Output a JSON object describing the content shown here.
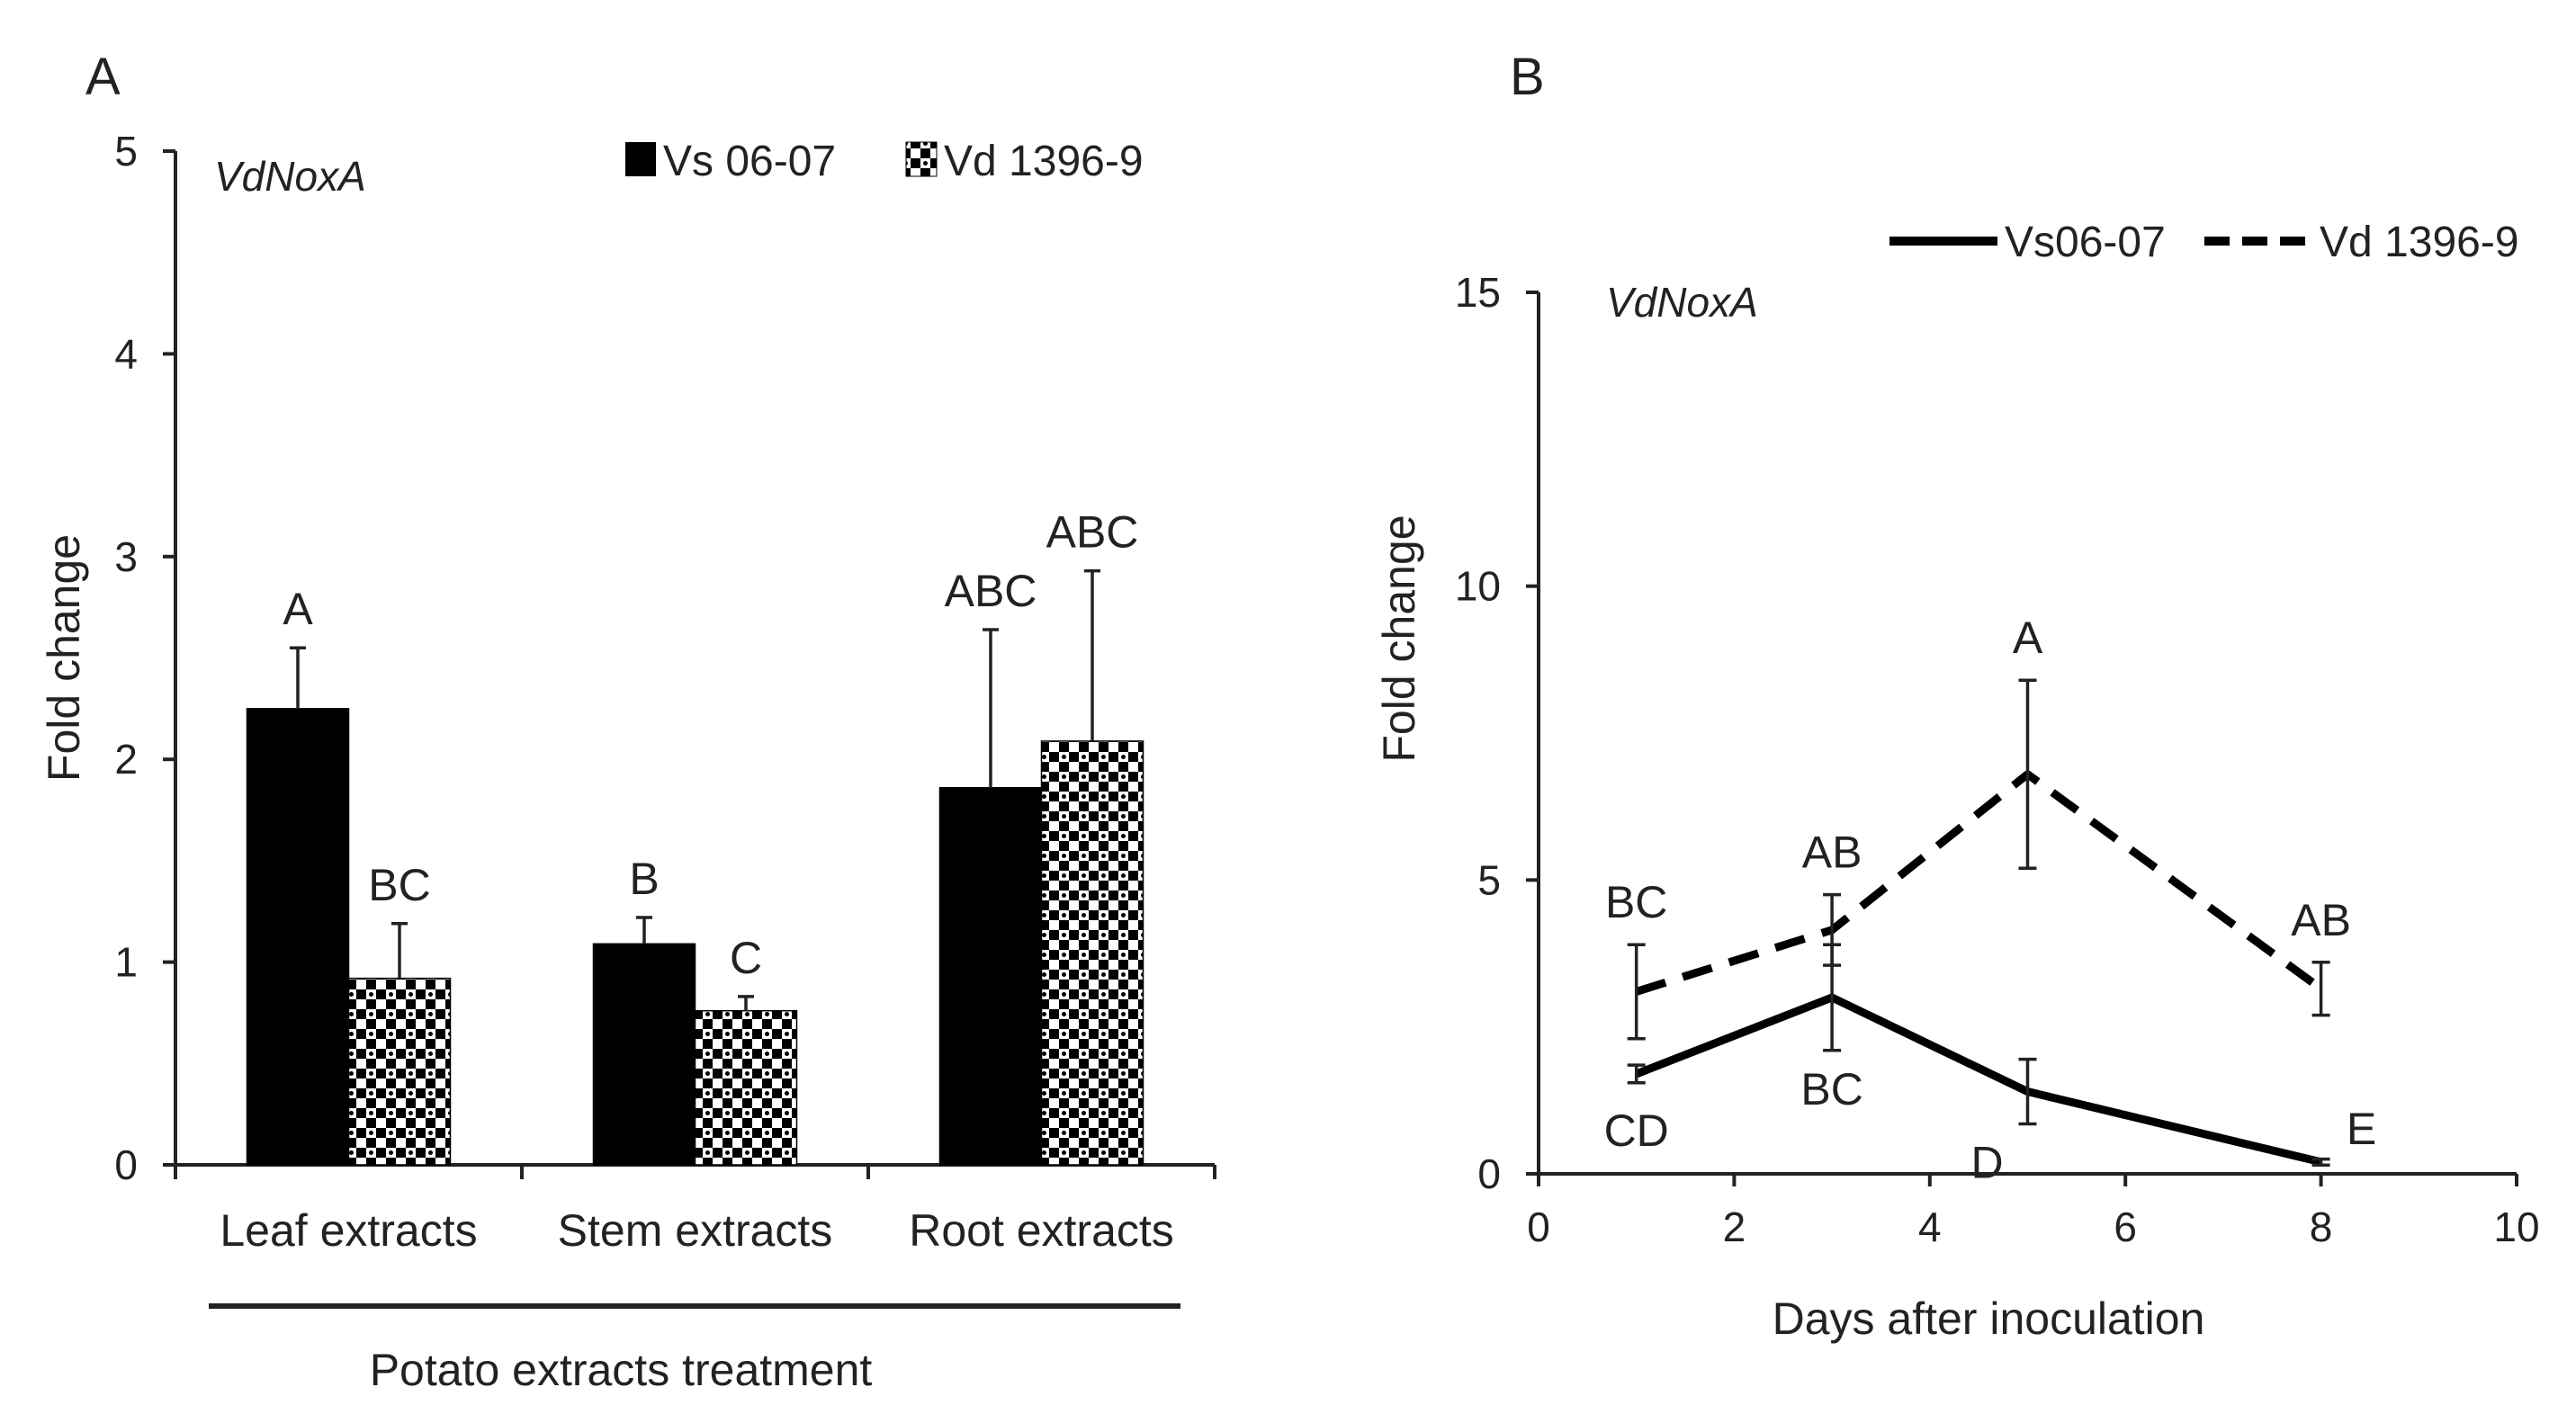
{
  "chart_data": [
    {
      "type": "bar",
      "panel": "A",
      "gene": "VdNoxA",
      "ylabel": "Fold change",
      "group_label": "Potato extracts treatment",
      "xlabel": "",
      "ylim": [
        0,
        5
      ],
      "yticks": [
        "0",
        "1",
        "2",
        "3",
        "4",
        "5"
      ],
      "categories": [
        "Leaf extracts",
        "Stem extracts",
        "Root extracts"
      ],
      "series": [
        {
          "name": "Vs 06-07",
          "color": "#000000",
          "pattern": "solid",
          "values": [
            2.25,
            1.09,
            1.86
          ],
          "errors": [
            0.3,
            0.13,
            0.78
          ],
          "labels": [
            "A",
            "B",
            "ABC"
          ]
        },
        {
          "name": "Vd 1396-9",
          "color": "#000000",
          "pattern": "checkered",
          "values": [
            0.92,
            0.76,
            2.09
          ],
          "errors": [
            0.27,
            0.07,
            0.84
          ],
          "labels": [
            "BC",
            "C",
            "ABC"
          ]
        }
      ]
    },
    {
      "type": "line",
      "panel": "B",
      "gene": "VdNoxA",
      "ylabel": "Fold change",
      "xlabel": "Days after inoculation",
      "xlim": [
        0,
        10
      ],
      "ylim": [
        0,
        15
      ],
      "xticks": [
        "0",
        "2",
        "4",
        "6",
        "8",
        "10"
      ],
      "yticks": [
        "0",
        "5",
        "10",
        "15"
      ],
      "x": [
        1,
        3,
        5,
        8
      ],
      "series": [
        {
          "name": "Vs06-07",
          "style": "solid",
          "values": [
            1.7,
            3.0,
            1.4,
            0.2
          ],
          "errors": [
            0.15,
            0.9,
            0.55,
            0.05
          ],
          "labels": [
            "CD",
            "BC",
            "D",
            "E"
          ]
        },
        {
          "name": "Vd 1396-9",
          "style": "dashed",
          "values": [
            3.1,
            4.15,
            6.8,
            3.15
          ],
          "errors": [
            0.8,
            0.6,
            1.6,
            0.45
          ],
          "labels": [
            "BC",
            "AB",
            "A",
            "AB"
          ]
        }
      ]
    }
  ]
}
